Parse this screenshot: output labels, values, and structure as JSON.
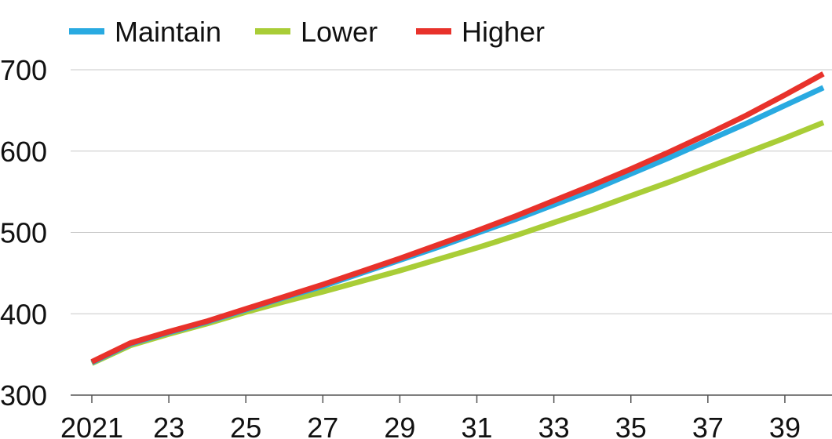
{
  "chart_data": {
    "type": "line",
    "title": "",
    "xlabel": "",
    "ylabel": "",
    "x": [
      2021,
      2022,
      2023,
      2024,
      2025,
      2026,
      2027,
      2028,
      2029,
      2030,
      2031,
      2032,
      2033,
      2034,
      2035,
      2036,
      2037,
      2038,
      2039,
      2040
    ],
    "x_tick_values": [
      2021,
      2023,
      2025,
      2027,
      2029,
      2031,
      2033,
      2035,
      2037,
      2039
    ],
    "x_tick_labels": [
      "2021",
      "23",
      "25",
      "27",
      "29",
      "31",
      "33",
      "35",
      "37",
      "39"
    ],
    "y_ticks": [
      300,
      400,
      500,
      600,
      700
    ],
    "y_tick_labels": [
      "300",
      "400",
      "500",
      "600",
      "700"
    ],
    "ylim": [
      300,
      710
    ],
    "xlim": [
      2021,
      2040
    ],
    "grid": true,
    "legend_position": "top-left",
    "series": [
      {
        "name": "Maintain",
        "color": "#29aae1",
        "values": [
          340,
          363,
          377,
          390,
          405,
          420,
          434,
          450,
          466,
          482,
          499,
          516,
          534,
          552,
          572,
          592,
          613,
          634,
          656,
          678
        ]
      },
      {
        "name": "Lower",
        "color": "#a9cd37",
        "values": [
          339,
          361,
          375,
          388,
          402,
          415,
          427,
          440,
          453,
          467,
          481,
          496,
          512,
          528,
          545,
          562,
          580,
          598,
          616,
          635
        ]
      },
      {
        "name": "Higher",
        "color": "#e8322b",
        "values": [
          341,
          364,
          378,
          391,
          406,
          421,
          436,
          452,
          468,
          485,
          502,
          520,
          539,
          558,
          578,
          599,
          621,
          644,
          669,
          695
        ]
      }
    ]
  }
}
